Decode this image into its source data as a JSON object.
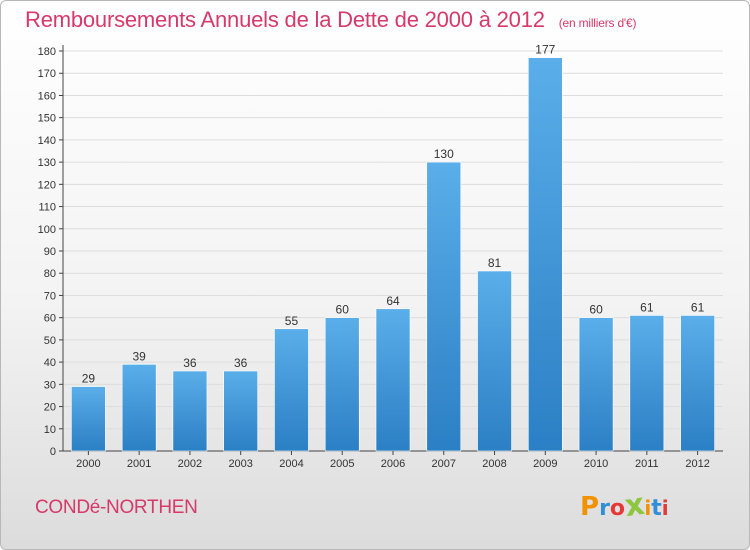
{
  "chart_data": {
    "type": "bar",
    "title": "Remboursements Annuels de la Dette de 2000 à 2012",
    "subtitle": "(en milliers d'€)",
    "categories": [
      "2000",
      "2001",
      "2002",
      "2003",
      "2004",
      "2005",
      "2006",
      "2007",
      "2008",
      "2009",
      "2010",
      "2011",
      "2012"
    ],
    "values": [
      29,
      39,
      36,
      36,
      55,
      60,
      64,
      130,
      81,
      177,
      60,
      61,
      61
    ],
    "ylim": [
      0,
      180
    ],
    "yticks": [
      0,
      10,
      20,
      30,
      40,
      50,
      60,
      70,
      80,
      90,
      100,
      110,
      120,
      130,
      140,
      150,
      160,
      170,
      180
    ],
    "grid": true,
    "data_labels": true,
    "bar_color": "#4a9ee0"
  },
  "footer": {
    "commune": "CONDé-NORTHEN",
    "logo_text": "Proxiti",
    "logo_colors": [
      "#f39200",
      "#2f8fd8",
      "#e53935",
      "#8dc63f",
      "#f39200",
      "#2f8fd8",
      "#e53935"
    ]
  },
  "colors": {
    "accent": "#d6396a",
    "grid": "#dddddd"
  }
}
